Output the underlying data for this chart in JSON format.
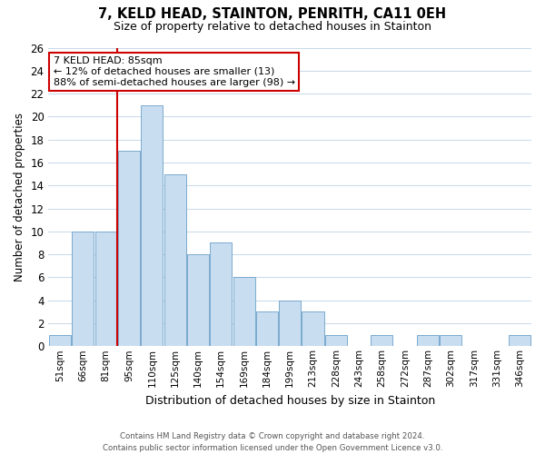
{
  "title": "7, KELD HEAD, STAINTON, PENRITH, CA11 0EH",
  "subtitle": "Size of property relative to detached houses in Stainton",
  "xlabel": "Distribution of detached houses by size in Stainton",
  "ylabel": "Number of detached properties",
  "bin_labels": [
    "51sqm",
    "66sqm",
    "81sqm",
    "95sqm",
    "110sqm",
    "125sqm",
    "140sqm",
    "154sqm",
    "169sqm",
    "184sqm",
    "199sqm",
    "213sqm",
    "228sqm",
    "243sqm",
    "258sqm",
    "272sqm",
    "287sqm",
    "302sqm",
    "317sqm",
    "331sqm",
    "346sqm"
  ],
  "bar_values": [
    1,
    10,
    10,
    17,
    21,
    15,
    8,
    9,
    6,
    3,
    4,
    3,
    1,
    0,
    1,
    0,
    1,
    1,
    0,
    0,
    1
  ],
  "bar_color": "#c8ddf0",
  "bar_edge_color": "#7aaacf",
  "vline_color": "#cc0000",
  "vline_pos": 2.5,
  "annotation_title": "7 KELD HEAD: 85sqm",
  "annotation_line1": "← 12% of detached houses are smaller (13)",
  "annotation_line2": "88% of semi-detached houses are larger (98) →",
  "annotation_box_color": "#ffffff",
  "annotation_box_edge": "#cc0000",
  "ylim": [
    0,
    26
  ],
  "yticks": [
    0,
    2,
    4,
    6,
    8,
    10,
    12,
    14,
    16,
    18,
    20,
    22,
    24,
    26
  ],
  "footer_line1": "Contains HM Land Registry data © Crown copyright and database right 2024.",
  "footer_line2": "Contains public sector information licensed under the Open Government Licence v3.0.",
  "bg_color": "#ffffff",
  "grid_color": "#c8d8e8"
}
